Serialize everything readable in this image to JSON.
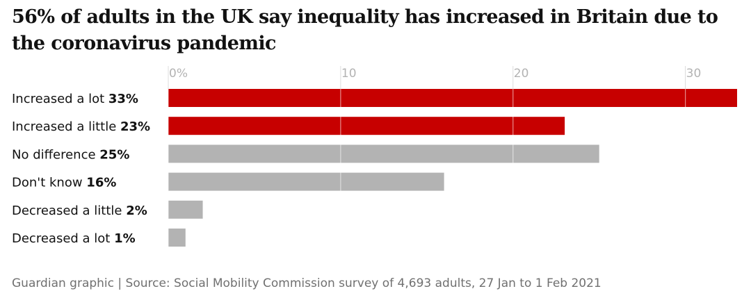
{
  "chart_data": {
    "type": "bar",
    "orientation": "horizontal",
    "title": "56% of adults in the UK say inequality has increased in Britain due to the coronavirus pandemic",
    "categories": [
      "Increased a lot",
      "Increased a little",
      "No difference",
      "Don't know",
      "Decreased a little",
      "Decreased a lot"
    ],
    "values": [
      33,
      23,
      25,
      16,
      2,
      1
    ],
    "value_labels": [
      "33%",
      "23%",
      "25%",
      "16%",
      "2%",
      "1%"
    ],
    "colors": [
      "#c70000",
      "#c70000",
      "#b3b3b3",
      "#b3b3b3",
      "#b3b3b3",
      "#b3b3b3"
    ],
    "xlim": [
      0,
      33
    ],
    "xticks": [
      0,
      10,
      20,
      30
    ],
    "xtick_labels": [
      "0%",
      "10",
      "20",
      "30"
    ],
    "grid": true,
    "source": "Guardian graphic | Source: Social Mobility Commission survey of 4,693 adults, 27 Jan to 1 Feb 2021"
  }
}
